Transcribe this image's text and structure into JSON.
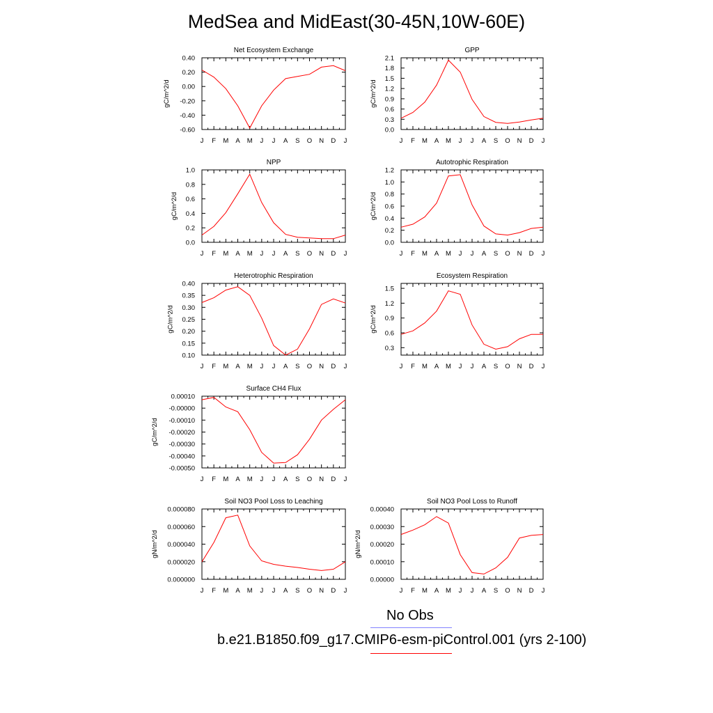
{
  "title": "MedSea and MidEast(30-45N,10W-60E)",
  "months": [
    "J",
    "F",
    "M",
    "A",
    "M",
    "J",
    "J",
    "A",
    "S",
    "O",
    "N",
    "D",
    "J"
  ],
  "line_color": "#ff0000",
  "legend": {
    "obs_label": "No Obs",
    "obs_color": "#8080ff",
    "model_label": "b.e21.B1850.f09_g17.CMIP6-esm-piControl.001 (yrs 2-100)",
    "model_color": "#ff0000"
  },
  "chart_data": [
    {
      "type": "line",
      "title": "Net Ecosystem Exchange",
      "ylabel": "gC/m^2/d",
      "ylim": [
        -0.6,
        0.4
      ],
      "yticks": [
        -0.6,
        -0.4,
        -0.2,
        0.0,
        0.2,
        0.4
      ],
      "yticklabels": [
        "-0.60",
        "-0.40",
        "-0.20",
        "0.00",
        "0.20",
        "0.40"
      ],
      "x": [
        0,
        1,
        2,
        3,
        4,
        5,
        6,
        7,
        8,
        9,
        10,
        11,
        12
      ],
      "values": [
        0.23,
        0.13,
        -0.03,
        -0.27,
        -0.58,
        -0.27,
        -0.05,
        0.11,
        0.14,
        0.17,
        0.27,
        0.29,
        0.22
      ]
    },
    {
      "type": "line",
      "title": "GPP",
      "ylabel": "gC/m^2/d",
      "ylim": [
        0,
        2.1
      ],
      "yticks": [
        0,
        0.3,
        0.6,
        0.9,
        1.2,
        1.5,
        1.8,
        2.1
      ],
      "yticklabels": [
        "0.0",
        "0.3",
        "0.6",
        "0.9",
        "1.2",
        "1.5",
        "1.8",
        "2.1"
      ],
      "x": [
        0,
        1,
        2,
        3,
        4,
        5,
        6,
        7,
        8,
        9,
        10,
        11,
        12
      ],
      "values": [
        0.33,
        0.5,
        0.8,
        1.3,
        2.03,
        1.68,
        0.88,
        0.38,
        0.21,
        0.18,
        0.22,
        0.28,
        0.33
      ]
    },
    {
      "type": "line",
      "title": "NPP",
      "ylabel": "gC/m^2/d",
      "ylim": [
        0,
        1.0
      ],
      "yticks": [
        0,
        0.2,
        0.4,
        0.6,
        0.8,
        1.0
      ],
      "yticklabels": [
        "0.0",
        "0.2",
        "0.4",
        "0.6",
        "0.8",
        "1.0"
      ],
      "x": [
        0,
        1,
        2,
        3,
        4,
        5,
        6,
        7,
        8,
        9,
        10,
        11,
        12
      ],
      "values": [
        0.1,
        0.22,
        0.41,
        0.67,
        0.94,
        0.55,
        0.27,
        0.11,
        0.07,
        0.06,
        0.05,
        0.05,
        0.1
      ]
    },
    {
      "type": "line",
      "title": "Autotrophic Respiration",
      "ylabel": "gC/m^2/d",
      "ylim": [
        0,
        1.2
      ],
      "yticks": [
        0,
        0.2,
        0.4,
        0.6,
        0.8,
        1.0,
        1.2
      ],
      "yticklabels": [
        "0.0",
        "0.2",
        "0.4",
        "0.6",
        "0.8",
        "1.0",
        "1.2"
      ],
      "x": [
        0,
        1,
        2,
        3,
        4,
        5,
        6,
        7,
        8,
        9,
        10,
        11,
        12
      ],
      "values": [
        0.25,
        0.3,
        0.42,
        0.65,
        1.1,
        1.12,
        0.62,
        0.27,
        0.14,
        0.12,
        0.16,
        0.23,
        0.25
      ]
    },
    {
      "type": "line",
      "title": "Heterotrophic Respiration",
      "ylabel": "gC/m^2/d",
      "ylim": [
        0.1,
        0.4
      ],
      "yticks": [
        0.1,
        0.15,
        0.2,
        0.25,
        0.3,
        0.35,
        0.4
      ],
      "yticklabels": [
        "0.10",
        "0.15",
        "0.20",
        "0.25",
        "0.30",
        "0.35",
        "0.40"
      ],
      "x": [
        0,
        1,
        2,
        3,
        4,
        5,
        6,
        7,
        8,
        9,
        10,
        11,
        12
      ],
      "values": [
        0.32,
        0.34,
        0.372,
        0.386,
        0.35,
        0.255,
        0.14,
        0.1,
        0.125,
        0.21,
        0.312,
        0.335,
        0.318
      ]
    },
    {
      "type": "line",
      "title": "Ecosystem Respiration",
      "ylabel": "gC/m^2/d",
      "ylim": [
        0.15,
        1.6
      ],
      "yticks": [
        0.3,
        0.6,
        0.9,
        1.2,
        1.5
      ],
      "yticklabels": [
        "0.3",
        "0.6",
        "0.9",
        "1.2",
        "1.5"
      ],
      "x": [
        0,
        1,
        2,
        3,
        4,
        5,
        6,
        7,
        8,
        9,
        10,
        11,
        12
      ],
      "values": [
        0.57,
        0.64,
        0.8,
        1.04,
        1.45,
        1.38,
        0.76,
        0.37,
        0.27,
        0.32,
        0.48,
        0.57,
        0.57
      ]
    },
    {
      "type": "line",
      "title": "Surface CH4 Flux",
      "ylabel": "gC/m^2/d",
      "ylim": [
        -0.0005,
        0.0001
      ],
      "yticks": [
        -0.0005,
        -0.0004,
        -0.0003,
        -0.0002,
        -0.0001,
        0.0,
        0.0001
      ],
      "yticklabels": [
        "-0.00050",
        "-0.00040",
        "-0.00030",
        "-0.00020",
        "-0.00010",
        "-0.00000",
        "0.00010"
      ],
      "x": [
        0,
        1,
        2,
        3,
        4,
        5,
        6,
        7,
        8,
        9,
        10,
        11,
        12
      ],
      "values": [
        7e-05,
        9e-05,
        1e-05,
        -3e-05,
        -0.00018,
        -0.00037,
        -0.00046,
        -0.000455,
        -0.00039,
        -0.00026,
        -0.0001,
        -1e-05,
        7e-05
      ]
    },
    {
      "type": "line",
      "title": "Soil NO3 Pool Loss to Leaching",
      "ylabel": "gN/m^2/d",
      "ylim": [
        0,
        8e-05
      ],
      "yticks": [
        0,
        2e-05,
        4e-05,
        6e-05,
        8e-05
      ],
      "yticklabels": [
        "0.000000",
        "0.000020",
        "0.000040",
        "0.000060",
        "0.000080"
      ],
      "x": [
        0,
        1,
        2,
        3,
        4,
        5,
        6,
        7,
        8,
        9,
        10,
        11,
        12
      ],
      "values": [
        2e-05,
        4.2e-05,
        7e-05,
        7.3e-05,
        3.8e-05,
        2.1e-05,
        1.7e-05,
        1.5e-05,
        1.35e-05,
        1.15e-05,
        1e-05,
        1.15e-05,
        2e-05
      ]
    },
    {
      "type": "line",
      "title": "Soil NO3 Pool Loss to Runoff",
      "ylabel": "gN/m^2/d",
      "ylim": [
        0,
        0.0004
      ],
      "yticks": [
        0,
        0.0001,
        0.0002,
        0.0003,
        0.0004
      ],
      "yticklabels": [
        "0.00000",
        "0.00010",
        "0.00020",
        "0.00030",
        "0.00040"
      ],
      "x": [
        0,
        1,
        2,
        3,
        4,
        5,
        6,
        7,
        8,
        9,
        10,
        11,
        12
      ],
      "values": [
        0.000255,
        0.00028,
        0.00031,
        0.000357,
        0.00032,
        0.00014,
        3.8e-05,
        3e-05,
        6.5e-05,
        0.000125,
        0.000235,
        0.00025,
        0.000255
      ]
    }
  ]
}
